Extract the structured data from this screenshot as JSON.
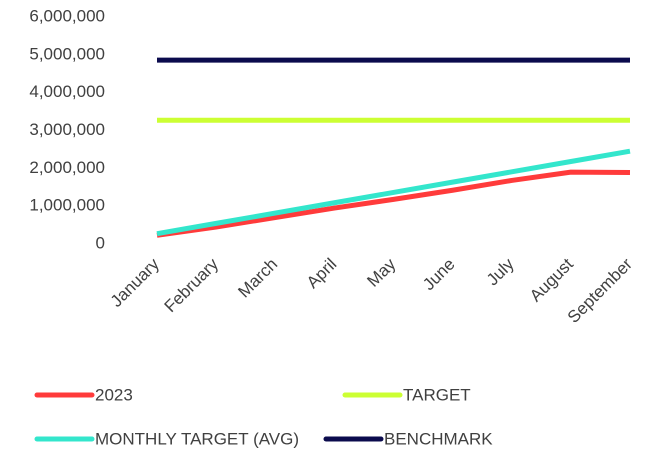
{
  "chart_data": {
    "type": "line",
    "categories": [
      "January",
      "February",
      "March",
      "April",
      "May",
      "June",
      "July",
      "August",
      "September"
    ],
    "series": [
      {
        "name": "2023",
        "color": "#ff3b3b",
        "values": [
          230000,
          450000,
          700000,
          950000,
          1180000,
          1420000,
          1680000,
          1900000,
          1890000
        ]
      },
      {
        "name": "TARGET",
        "color": "#ccff33",
        "values": [
          3270000,
          3270000,
          3270000,
          3270000,
          3270000,
          3270000,
          3270000,
          3270000,
          3270000
        ]
      },
      {
        "name": "MONTHLY TARGET (AVG)",
        "color": "#33e6cc",
        "values": [
          272500,
          545000,
          817500,
          1090000,
          1362500,
          1635000,
          1907500,
          2180000,
          2452500
        ]
      },
      {
        "name": "BENCHMARK",
        "color": "#0b0b4d",
        "values": [
          4860000,
          4860000,
          4860000,
          4860000,
          4860000,
          4860000,
          4860000,
          4860000,
          4860000
        ]
      }
    ],
    "ylim": [
      0,
      6000000
    ],
    "yticks": [
      0,
      {
        "value": 1000000,
        "label": "1,000,000"
      },
      {
        "value": 2000000,
        "label": "2,000,000"
      },
      {
        "value": 3000000,
        "label": "3,000,000"
      },
      {
        "value": 4000000,
        "label": "4,000,000"
      },
      {
        "value": 5000000,
        "label": "5,000,000"
      },
      {
        "value": 6000000,
        "label": "6,000,000"
      }
    ],
    "grid": false
  }
}
